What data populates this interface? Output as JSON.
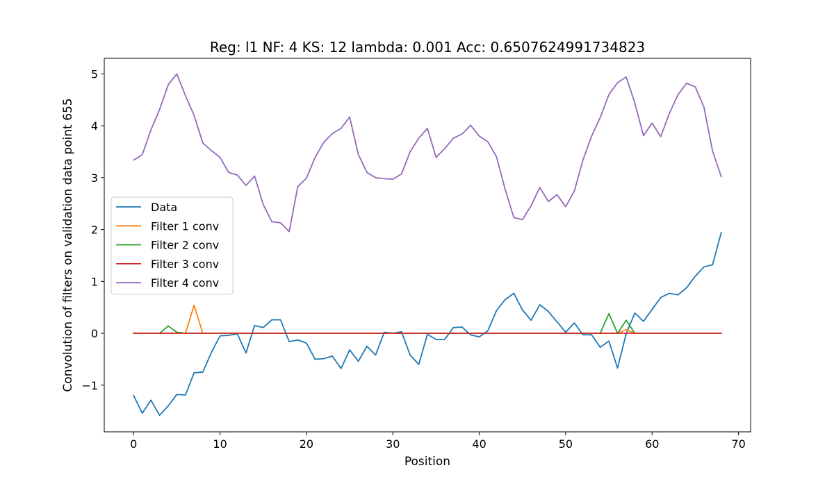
{
  "chart_data": {
    "type": "line",
    "title": "Reg: l1  NF: 4  KS: 12  lambda: 0.001 Acc: 0.6507624991734823",
    "xlabel": "Position",
    "ylabel": "Convolution of filters on validation data point 655",
    "xlim": [
      -3.4,
      71.4
    ],
    "ylim": [
      -1.9,
      5.3
    ],
    "xticks": [
      0,
      10,
      20,
      30,
      40,
      50,
      60,
      70
    ],
    "yticks": [
      -1,
      0,
      1,
      2,
      3,
      4,
      5
    ],
    "ytick_labels": [
      "−1",
      "0",
      "1",
      "2",
      "3",
      "4",
      "5"
    ],
    "grid": false,
    "legend_position": "center-left",
    "x": [
      0,
      1,
      2,
      3,
      4,
      5,
      6,
      7,
      8,
      9,
      10,
      11,
      12,
      13,
      14,
      15,
      16,
      17,
      18,
      19,
      20,
      21,
      22,
      23,
      24,
      25,
      26,
      27,
      28,
      29,
      30,
      31,
      32,
      33,
      34,
      35,
      36,
      37,
      38,
      39,
      40,
      41,
      42,
      43,
      44,
      45,
      46,
      47,
      48,
      49,
      50,
      51,
      52,
      53,
      54,
      55,
      56,
      57,
      58,
      59,
      60,
      61,
      62,
      63,
      64,
      65,
      66,
      67,
      68
    ],
    "series": [
      {
        "name": "Data",
        "color": "#1f77b4",
        "values": [
          -1.2,
          -1.54,
          -1.29,
          -1.58,
          -1.4,
          -1.18,
          -1.19,
          -0.76,
          -0.75,
          -0.37,
          -0.05,
          -0.04,
          -0.01,
          -0.38,
          0.15,
          0.11,
          0.26,
          0.26,
          -0.16,
          -0.13,
          -0.19,
          -0.5,
          -0.49,
          -0.44,
          -0.68,
          -0.32,
          -0.54,
          -0.25,
          -0.42,
          0.02,
          0.0,
          0.03,
          -0.42,
          -0.6,
          -0.02,
          -0.12,
          -0.12,
          0.11,
          0.12,
          -0.03,
          -0.07,
          0.05,
          0.44,
          0.65,
          0.77,
          0.45,
          0.25,
          0.55,
          0.42,
          0.22,
          0.02,
          0.2,
          -0.03,
          -0.03,
          -0.27,
          -0.15,
          -0.67,
          -0.01,
          0.39,
          0.23,
          0.46,
          0.69,
          0.77,
          0.74,
          0.88,
          1.1,
          1.28,
          1.32,
          1.94
        ]
      },
      {
        "name": "Filter 1 conv",
        "color": "#ff7f0e",
        "values": [
          0,
          0,
          0,
          0,
          0,
          0,
          0,
          0.54,
          0,
          0,
          0,
          0,
          0,
          0,
          0,
          0,
          0,
          0,
          0,
          0,
          0,
          0,
          0,
          0,
          0,
          0,
          0,
          0,
          0,
          0,
          0,
          0,
          0,
          0,
          0,
          0,
          0,
          0,
          0,
          0,
          0,
          0,
          0,
          0,
          0,
          0,
          0,
          0,
          0,
          0,
          0,
          0,
          0,
          0,
          0,
          0,
          0,
          0.07,
          0,
          0,
          0,
          0,
          0,
          0,
          0,
          0,
          0,
          0,
          0
        ]
      },
      {
        "name": "Filter 2 conv",
        "color": "#2ca02c",
        "values": [
          0,
          0,
          0,
          0,
          0.14,
          0.02,
          0,
          0,
          0,
          0,
          0,
          0,
          0,
          0,
          0,
          0,
          0,
          0,
          0,
          0,
          0,
          0,
          0,
          0,
          0,
          0,
          0,
          0,
          0,
          0,
          0,
          0,
          0,
          0,
          0,
          0,
          0,
          0,
          0,
          0,
          0,
          0,
          0,
          0,
          0,
          0,
          0,
          0,
          0,
          0,
          0,
          0,
          0,
          0,
          0,
          0.38,
          0,
          0.25,
          0,
          0,
          0,
          0,
          0,
          0,
          0,
          0,
          0,
          0,
          0
        ]
      },
      {
        "name": "Filter 3 conv",
        "color": "#d62728",
        "values": [
          0,
          0,
          0,
          0,
          0,
          0,
          0,
          0,
          0,
          0,
          0,
          0,
          0,
          0,
          0,
          0,
          0,
          0,
          0,
          0,
          0,
          0,
          0,
          0,
          0,
          0,
          0,
          0,
          0,
          0,
          0,
          0,
          0,
          0,
          0,
          0,
          0,
          0,
          0,
          0,
          0,
          0,
          0,
          0,
          0,
          0,
          0,
          0,
          0,
          0,
          0,
          0,
          0,
          0,
          0,
          0,
          0,
          0,
          0,
          0,
          0,
          0,
          0,
          0,
          0,
          0,
          0,
          0,
          0
        ]
      },
      {
        "name": "Filter 4 conv",
        "color": "#9467bd",
        "values": [
          3.34,
          3.44,
          3.92,
          4.31,
          4.79,
          5.0,
          4.58,
          4.2,
          3.67,
          3.52,
          3.39,
          3.1,
          3.05,
          2.85,
          3.03,
          2.48,
          2.15,
          2.13,
          1.96,
          2.83,
          2.99,
          3.39,
          3.68,
          3.85,
          3.95,
          4.17,
          3.45,
          3.1,
          3.0,
          2.98,
          2.97,
          3.07,
          3.5,
          3.76,
          3.95,
          3.39,
          3.56,
          3.76,
          3.84,
          4.01,
          3.8,
          3.69,
          3.4,
          2.77,
          2.23,
          2.19,
          2.46,
          2.81,
          2.54,
          2.67,
          2.44,
          2.74,
          3.34,
          3.8,
          4.16,
          4.6,
          4.83,
          4.94,
          4.44,
          3.81,
          4.05,
          3.79,
          4.24,
          4.6,
          4.82,
          4.75,
          4.36,
          3.51,
          3.02
        ]
      }
    ]
  }
}
